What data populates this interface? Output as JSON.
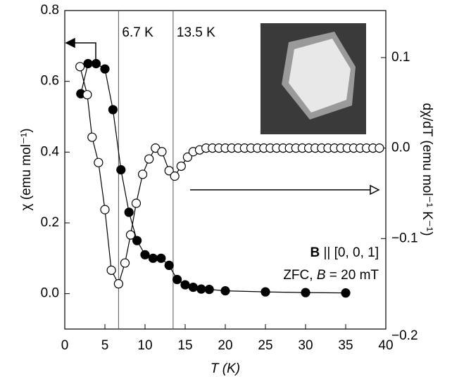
{
  "chart_data": {
    "type": "scatter",
    "xlabel": "T (K)",
    "ylabel": "χ (emu mol⁻¹)",
    "y2label": "dχ/dT (emu mol⁻¹ K⁻¹)",
    "xlim": [
      0,
      40
    ],
    "xticks": [
      0,
      5,
      10,
      15,
      20,
      25,
      30,
      35,
      40
    ],
    "ylim": [
      -0.1,
      0.8
    ],
    "yticks": [
      {
        "value": 0,
        "label": "0.0"
      },
      0.2,
      0.4,
      0.6,
      0.8
    ],
    "y2lim": [
      -0.2,
      0.152
    ],
    "y2ticks": [
      {
        "value": 0.1,
        "label": "0.1"
      },
      {
        "value": 0,
        "label": "0.0"
      },
      {
        "value": -0.1,
        "label": "−0.1"
      },
      {
        "value": -0.2,
        "label": "−0.2"
      }
    ],
    "annotations": [
      {
        "text": "6.7 K",
        "x": 6.7
      },
      {
        "text": "13.5 K",
        "x": 13.5
      }
    ],
    "condition_lines": [
      [
        "B",
        " || [0, 0, 1]"
      ],
      [
        "ZFC, ",
        "B",
        " = 20 mT"
      ]
    ],
    "series": [
      {
        "color": "#000000",
        "marker_fill": "#000000",
        "axis": "y",
        "x": [
          2,
          2.9,
          3.9,
          5,
          6,
          7,
          8,
          9,
          10,
          11,
          12,
          13,
          14,
          15,
          16,
          17,
          18,
          20,
          25,
          30,
          35
        ],
        "values": [
          0.565,
          0.65,
          0.65,
          0.635,
          0.52,
          0.35,
          0.23,
          0.15,
          0.11,
          0.1,
          0.1,
          0.08,
          0.04,
          0.025,
          0.018,
          0.013,
          0.012,
          0.008,
          0.005,
          0.003,
          0.002
        ]
      },
      {
        "color": "#000000",
        "marker_fill": "#ffffff",
        "axis": "y2",
        "x": [
          1.9,
          2.8,
          3.4,
          4.2,
          5.0,
          5.8,
          6.7,
          7.5,
          8.2,
          8.9,
          9.7,
          10.5,
          11.3,
          12.1,
          13.0,
          13.7,
          14.5,
          15.3,
          16.0,
          16.8,
          17.6,
          18.4,
          19.2,
          20.0,
          20.8,
          21.6,
          22.4,
          23.2,
          24.0,
          24.8,
          25.6,
          26.4,
          27.2,
          28.0,
          28.8,
          29.6,
          30.4,
          31.2,
          32.0,
          32.8,
          33.6,
          34.4,
          35.2,
          36.0,
          36.8,
          37.6,
          38.4,
          39.2
        ],
        "values": [
          0.09,
          0.059,
          0.012,
          -0.016,
          -0.068,
          -0.135,
          -0.15,
          -0.127,
          -0.096,
          -0.061,
          -0.029,
          -0.012,
          0.0,
          -0.004,
          -0.025,
          -0.031,
          -0.02,
          -0.01,
          -0.004,
          -0.002,
          0.0,
          0.0,
          0.0,
          0.0,
          0.0,
          0.0,
          0.0,
          0.0,
          0.0,
          0.0,
          0.0,
          0.0,
          0.0,
          0.0,
          0.0,
          0.0,
          0.0,
          0.0,
          0.0,
          0.0,
          0.0,
          0.0,
          0.0,
          0.0,
          0.0,
          0.0,
          0.0,
          0.0
        ]
      }
    ]
  }
}
